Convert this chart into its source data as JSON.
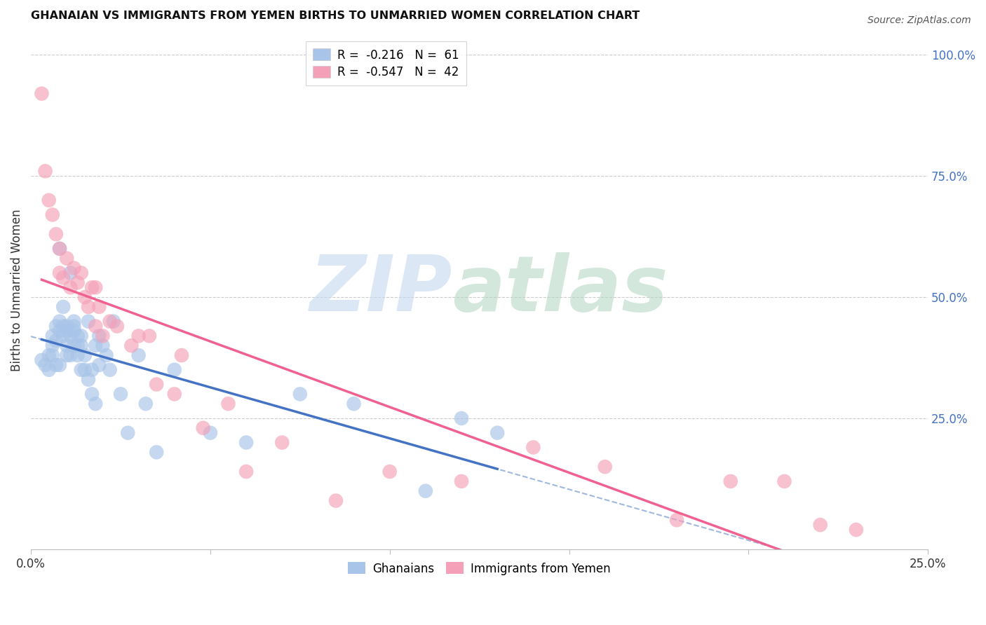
{
  "title": "GHANAIAN VS IMMIGRANTS FROM YEMEN BIRTHS TO UNMARRIED WOMEN CORRELATION CHART",
  "source": "Source: ZipAtlas.com",
  "ylabel": "Births to Unmarried Women",
  "xlim": [
    0.0,
    0.25
  ],
  "ylim": [
    -0.02,
    1.05
  ],
  "blue_R": -0.216,
  "blue_N": 61,
  "pink_R": -0.547,
  "pink_N": 42,
  "blue_color": "#a8c4e8",
  "pink_color": "#f4a0b8",
  "blue_line_color": "#4472c4",
  "pink_line_color": "#f06090",
  "dashed_line_color": "#a0b8e0",
  "legend_label_blue": "Ghanaians",
  "legend_label_pink": "Immigrants from Yemen",
  "blue_scatter_x": [
    0.003,
    0.004,
    0.005,
    0.005,
    0.006,
    0.006,
    0.006,
    0.007,
    0.007,
    0.007,
    0.008,
    0.008,
    0.008,
    0.008,
    0.009,
    0.009,
    0.009,
    0.01,
    0.01,
    0.01,
    0.01,
    0.011,
    0.011,
    0.011,
    0.012,
    0.012,
    0.012,
    0.012,
    0.013,
    0.013,
    0.013,
    0.014,
    0.014,
    0.014,
    0.015,
    0.015,
    0.016,
    0.016,
    0.017,
    0.017,
    0.018,
    0.018,
    0.019,
    0.019,
    0.02,
    0.021,
    0.022,
    0.023,
    0.025,
    0.027,
    0.03,
    0.032,
    0.035,
    0.04,
    0.05,
    0.06,
    0.075,
    0.09,
    0.11,
    0.12,
    0.13
  ],
  "blue_scatter_y": [
    0.37,
    0.36,
    0.38,
    0.35,
    0.4,
    0.42,
    0.38,
    0.44,
    0.41,
    0.36,
    0.43,
    0.45,
    0.6,
    0.36,
    0.44,
    0.48,
    0.42,
    0.4,
    0.43,
    0.38,
    0.44,
    0.42,
    0.38,
    0.55,
    0.44,
    0.4,
    0.43,
    0.45,
    0.4,
    0.42,
    0.38,
    0.4,
    0.35,
    0.42,
    0.38,
    0.35,
    0.33,
    0.45,
    0.35,
    0.3,
    0.28,
    0.4,
    0.36,
    0.42,
    0.4,
    0.38,
    0.35,
    0.45,
    0.3,
    0.22,
    0.38,
    0.28,
    0.18,
    0.35,
    0.22,
    0.2,
    0.3,
    0.28,
    0.1,
    0.25,
    0.22
  ],
  "pink_scatter_x": [
    0.003,
    0.004,
    0.005,
    0.006,
    0.007,
    0.008,
    0.008,
    0.009,
    0.01,
    0.011,
    0.012,
    0.013,
    0.014,
    0.015,
    0.016,
    0.017,
    0.018,
    0.018,
    0.019,
    0.02,
    0.022,
    0.024,
    0.028,
    0.03,
    0.033,
    0.035,
    0.04,
    0.042,
    0.048,
    0.055,
    0.06,
    0.07,
    0.085,
    0.1,
    0.12,
    0.14,
    0.16,
    0.18,
    0.195,
    0.21,
    0.22,
    0.23
  ],
  "pink_scatter_y": [
    0.92,
    0.76,
    0.7,
    0.67,
    0.63,
    0.55,
    0.6,
    0.54,
    0.58,
    0.52,
    0.56,
    0.53,
    0.55,
    0.5,
    0.48,
    0.52,
    0.44,
    0.52,
    0.48,
    0.42,
    0.45,
    0.44,
    0.4,
    0.42,
    0.42,
    0.32,
    0.3,
    0.38,
    0.23,
    0.28,
    0.14,
    0.2,
    0.08,
    0.14,
    0.12,
    0.19,
    0.15,
    0.04,
    0.12,
    0.12,
    0.03,
    0.02
  ]
}
